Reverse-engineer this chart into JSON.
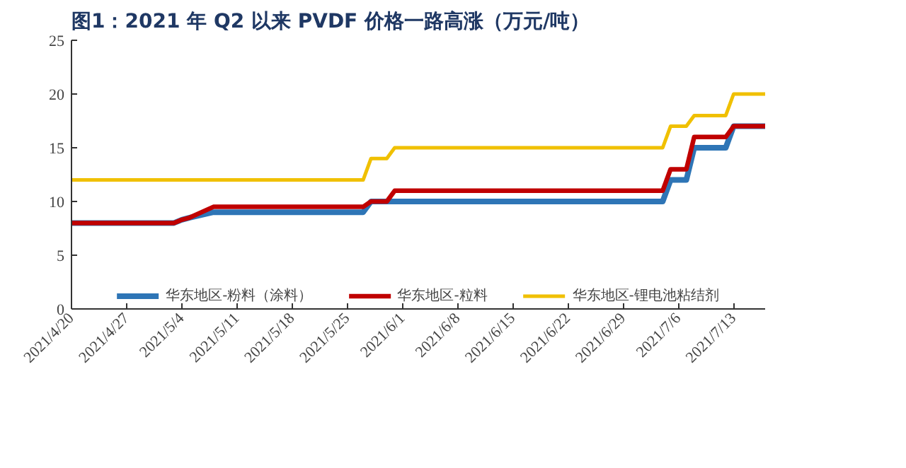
{
  "chart_data": {
    "type": "line",
    "title": "图1：2021 年 Q2 以来 PVDF 价格一路高涨（万元/吨）",
    "x": [
      "2021-04-20",
      "2021-05-03",
      "2021-05-04",
      "2021-05-05",
      "2021-05-08",
      "2021-05-27",
      "2021-05-28",
      "2021-05-30",
      "2021-05-31",
      "2021-07-04",
      "2021-07-05",
      "2021-07-07",
      "2021-07-08",
      "2021-07-12",
      "2021-07-13",
      "2021-07-17"
    ],
    "series": [
      {
        "name": "华东地区-粉料（涂料）",
        "color": "#2e75b6",
        "values": [
          8,
          8,
          8.3,
          8.5,
          9,
          9,
          10,
          10,
          10,
          10,
          12,
          12,
          15,
          15,
          17,
          17
        ]
      },
      {
        "name": "华东地区-粒料",
        "color": "#c00000",
        "values": [
          8,
          8,
          8.3,
          8.5,
          9.5,
          9.5,
          10,
          10,
          11,
          11,
          13,
          13,
          16,
          16,
          17,
          17
        ]
      },
      {
        "name": "华东地区-锂电池粘结剂",
        "color": "#f0c000",
        "values": [
          12,
          12,
          12,
          12,
          12,
          12,
          14,
          14,
          15,
          15,
          17,
          17,
          18,
          18,
          20,
          20
        ]
      }
    ],
    "xlim": [
      "2021-04-20",
      "2021-07-17"
    ],
    "xticks": [
      {
        "value": "2021-04-20",
        "label": "2021/4/20"
      },
      {
        "value": "2021-04-27",
        "label": "2021/4/27"
      },
      {
        "value": "2021-05-04",
        "label": "2021/5/4"
      },
      {
        "value": "2021-05-11",
        "label": "2021/5/11"
      },
      {
        "value": "2021-05-18",
        "label": "2021/5/18"
      },
      {
        "value": "2021-05-25",
        "label": "2021/5/25"
      },
      {
        "value": "2021-06-01",
        "label": "2021/6/1"
      },
      {
        "value": "2021-06-08",
        "label": "2021/6/8"
      },
      {
        "value": "2021-06-15",
        "label": "2021/6/15"
      },
      {
        "value": "2021-06-22",
        "label": "2021/6/22"
      },
      {
        "value": "2021-06-29",
        "label": "2021/6/29"
      },
      {
        "value": "2021-07-06",
        "label": "2021/7/6"
      },
      {
        "value": "2021-07-13",
        "label": "2021/7/13"
      }
    ],
    "ylim": [
      0,
      25
    ],
    "yticks": [
      0,
      5,
      10,
      15,
      20,
      25
    ],
    "grid": false,
    "legend": "bottom",
    "marker": "none",
    "line_style": "solid"
  }
}
